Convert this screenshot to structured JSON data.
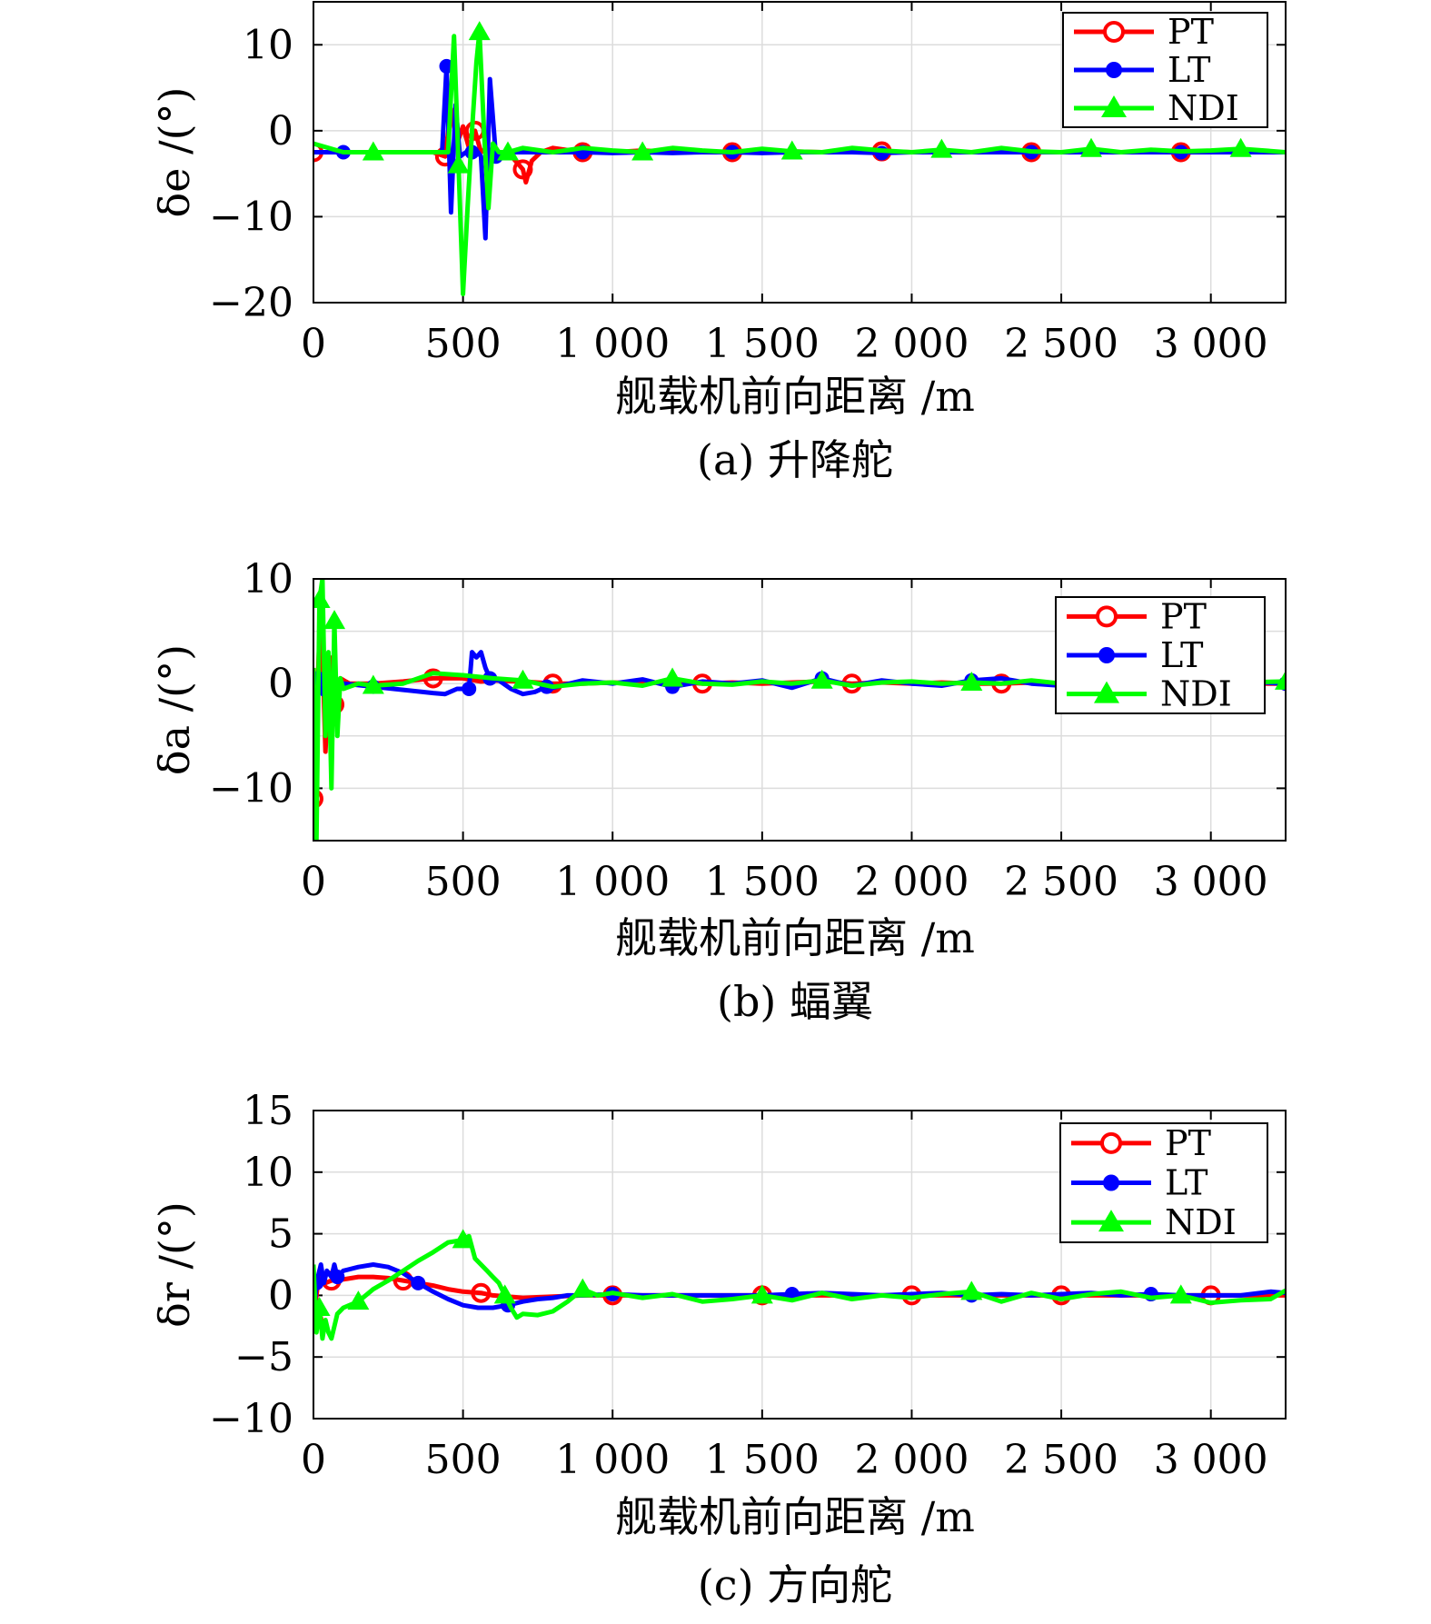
{
  "chart_data": [
    {
      "type": "line",
      "caption": "(a) 升降舵",
      "xlabel": "舰载机前向距离 /m",
      "ylabel": "δe /(°)",
      "xlim": [
        0,
        3250
      ],
      "ylim": [
        -20,
        15
      ],
      "xticks": [
        0,
        500,
        1000,
        1500,
        2000,
        2500,
        3000
      ],
      "xtick_labels": [
        "0",
        "500",
        "1 000",
        "1 500",
        "2 000",
        "2 500",
        "3 000"
      ],
      "yticks": [
        -20,
        -10,
        0,
        10
      ],
      "ytick_labels": [
        "−20",
        "−10",
        "0",
        "10"
      ],
      "grid": true,
      "legend_position": "top-right",
      "series": [
        {
          "name": "PT",
          "color": "#ff0000",
          "marker": "circle-open",
          "x": [
            0,
            100,
            200,
            300,
            400,
            440,
            460,
            480,
            500,
            520,
            540,
            560,
            580,
            600,
            650,
            700,
            710,
            730,
            760,
            800,
            900,
            1000,
            1100,
            1200,
            1300,
            1400,
            1500,
            1600,
            1700,
            1800,
            1900,
            2000,
            2100,
            2200,
            2300,
            2400,
            2500,
            2600,
            2700,
            2800,
            2900,
            3000,
            3100,
            3250
          ],
          "y": [
            -2.5,
            -2.5,
            -2.5,
            -2.5,
            -2.5,
            -3.0,
            2.5,
            -1.5,
            0.5,
            -2.0,
            0.0,
            -2.5,
            -2.0,
            -2.5,
            -2.5,
            -4.5,
            -6.0,
            -3.5,
            -2.5,
            -2.0,
            -2.5,
            -2.5,
            -2.3,
            -2.5,
            -2.4,
            -2.5,
            -2.5,
            -2.4,
            -2.5,
            -2.5,
            -2.4,
            -2.5,
            -2.5,
            -2.5,
            -2.4,
            -2.5,
            -2.5,
            -2.5,
            -2.5,
            -2.5,
            -2.5,
            -2.5,
            -2.5,
            -2.5
          ]
        },
        {
          "name": "LT",
          "color": "#0000ff",
          "marker": "dot",
          "x": [
            0,
            100,
            200,
            300,
            400,
            430,
            445,
            460,
            475,
            490,
            510,
            530,
            550,
            560,
            575,
            590,
            610,
            630,
            650,
            700,
            800,
            900,
            1000,
            1100,
            1200,
            1300,
            1400,
            1500,
            1600,
            1700,
            1800,
            1900,
            2000,
            2100,
            2200,
            2300,
            2400,
            2500,
            2600,
            2700,
            2800,
            2900,
            3000,
            3100,
            3250
          ],
          "y": [
            -2.5,
            -2.5,
            -2.5,
            -2.5,
            -2.5,
            -2.5,
            7.5,
            -9.5,
            3.0,
            -3.0,
            -2.5,
            -2.5,
            -2.5,
            -3.0,
            -12.5,
            6.0,
            -3.0,
            -2.5,
            -2.5,
            -2.5,
            -2.5,
            -2.5,
            -2.6,
            -2.5,
            -2.6,
            -2.5,
            -2.5,
            -2.6,
            -2.5,
            -2.5,
            -2.5,
            -2.6,
            -2.5,
            -2.5,
            -2.5,
            -2.5,
            -2.5,
            -2.5,
            -2.5,
            -2.5,
            -2.5,
            -2.5,
            -2.5,
            -2.5,
            -2.5
          ]
        },
        {
          "name": "NDI",
          "color": "#00ff00",
          "marker": "triangle",
          "x": [
            0,
            100,
            200,
            300,
            400,
            450,
            470,
            485,
            500,
            515,
            530,
            545,
            555,
            570,
            585,
            600,
            620,
            650,
            700,
            800,
            900,
            1000,
            1100,
            1200,
            1300,
            1400,
            1500,
            1600,
            1700,
            1800,
            1900,
            2000,
            2100,
            2200,
            2300,
            2400,
            2500,
            2600,
            2700,
            2800,
            2900,
            3000,
            3100,
            3250
          ],
          "y": [
            -1.5,
            -2.5,
            -2.5,
            -2.5,
            -2.5,
            -2.5,
            11.0,
            -4.0,
            -19.0,
            -9.0,
            0.0,
            8.0,
            11.5,
            0.0,
            -9.0,
            -1.5,
            -2.5,
            -2.5,
            -2.0,
            -2.5,
            -2.0,
            -2.3,
            -2.5,
            -2.0,
            -2.3,
            -2.5,
            -2.1,
            -2.4,
            -2.5,
            -2.0,
            -2.3,
            -2.5,
            -2.2,
            -2.5,
            -2.0,
            -2.4,
            -2.5,
            -2.1,
            -2.5,
            -2.2,
            -2.4,
            -2.3,
            -2.1,
            -2.5
          ]
        }
      ]
    },
    {
      "type": "line",
      "caption": "(b) 蝠翼",
      "xlabel": "舰载机前向距离 /m",
      "ylabel": "δa /(°)",
      "xlim": [
        0,
        3250
      ],
      "ylim": [
        -15,
        10
      ],
      "xticks": [
        0,
        500,
        1000,
        1500,
        2000,
        2500,
        3000
      ],
      "xtick_labels": [
        "0",
        "500",
        "1 000",
        "1 500",
        "2 000",
        "2 500",
        "3 000"
      ],
      "yticks": [
        -10,
        0,
        10
      ],
      "ytick_labels": [
        "−10",
        "0",
        "10"
      ],
      "grid": true,
      "legend_position": "top-right",
      "series": [
        {
          "name": "PT",
          "color": "#ff0000",
          "marker": "circle-open",
          "x": [
            0,
            10,
            25,
            40,
            55,
            70,
            90,
            120,
            200,
            300,
            400,
            500,
            560,
            600,
            700,
            800,
            900,
            1000,
            1100,
            1200,
            1300,
            1400,
            1500,
            1600,
            1700,
            1800,
            1900,
            2000,
            2100,
            2200,
            2300,
            2400,
            2500,
            2600,
            2700,
            2800,
            2900,
            3000,
            3100,
            3250
          ],
          "y": [
            -11.0,
            -3.0,
            8.0,
            -6.5,
            2.5,
            -2.0,
            0.5,
            0.0,
            0.0,
            0.2,
            0.5,
            0.5,
            0.2,
            0.3,
            0.2,
            0.0,
            0.0,
            0.1,
            0.0,
            0.2,
            0.0,
            0.1,
            0.0,
            0.1,
            0.2,
            0.0,
            0.1,
            0.0,
            0.1,
            0.0,
            0.0,
            0.1,
            0.0,
            0.1,
            0.0,
            0.0,
            0.1,
            0.0,
            0.0,
            0.0
          ]
        },
        {
          "name": "LT",
          "color": "#0000ff",
          "marker": "dot",
          "x": [
            0,
            15,
            30,
            50,
            70,
            100,
            200,
            300,
            400,
            440,
            480,
            520,
            530,
            545,
            560,
            575,
            590,
            620,
            660,
            700,
            740,
            780,
            800,
            900,
            1000,
            1100,
            1200,
            1300,
            1400,
            1500,
            1600,
            1700,
            1800,
            1900,
            2000,
            2100,
            2200,
            2300,
            2400,
            2500,
            2600,
            2700,
            2800,
            2900,
            3000,
            3100,
            3250
          ],
          "y": [
            0.0,
            0.5,
            -1.0,
            1.0,
            0.0,
            0.0,
            -0.3,
            -0.6,
            -0.9,
            -1.0,
            -0.5,
            -0.5,
            3.0,
            2.5,
            3.0,
            1.5,
            0.5,
            0.3,
            -0.5,
            -1.0,
            -0.8,
            -0.3,
            -0.4,
            0.3,
            0.0,
            0.4,
            -0.3,
            0.2,
            0.0,
            0.3,
            -0.4,
            0.5,
            -0.2,
            0.3,
            0.0,
            -0.2,
            0.3,
            0.5,
            0.0,
            -0.2,
            0.3,
            0.0,
            -0.1,
            0.2,
            0.0,
            0.2,
            0.0
          ]
        },
        {
          "name": "NDI",
          "color": "#00ff00",
          "marker": "triangle",
          "x": [
            0,
            10,
            20,
            30,
            40,
            50,
            60,
            70,
            80,
            90,
            100,
            150,
            200,
            300,
            400,
            500,
            600,
            700,
            800,
            900,
            1000,
            1100,
            1200,
            1300,
            1400,
            1500,
            1600,
            1700,
            1800,
            1900,
            2000,
            2100,
            2200,
            2300,
            2400,
            2500,
            2600,
            2700,
            2800,
            2900,
            3000,
            3100,
            3250
          ],
          "y": [
            1.5,
            -15.0,
            8.0,
            10.0,
            -5.0,
            3.0,
            -10.0,
            6.0,
            -5.0,
            0.5,
            -0.5,
            0.0,
            -0.2,
            0.0,
            1.0,
            0.8,
            0.5,
            0.3,
            -0.3,
            0.0,
            0.1,
            -0.2,
            0.5,
            0.0,
            -0.1,
            0.2,
            0.0,
            0.3,
            -0.2,
            0.1,
            0.2,
            0.0,
            0.1,
            0.0,
            0.3,
            0.0,
            -0.1,
            0.1,
            0.0,
            0.2,
            0.0,
            0.1,
            0.2
          ]
        }
      ]
    },
    {
      "type": "line",
      "caption": "(c) 方向舵",
      "xlabel": "舰载机前向距离 /m",
      "ylabel": "δr /(°)",
      "xlim": [
        0,
        3250
      ],
      "ylim": [
        -10,
        15
      ],
      "xticks": [
        0,
        500,
        1000,
        1500,
        2000,
        2500,
        3000
      ],
      "xtick_labels": [
        "0",
        "500",
        "1 000",
        "1 500",
        "2 000",
        "2 500",
        "3 000"
      ],
      "yticks": [
        -10,
        -5,
        0,
        5,
        10,
        15
      ],
      "ytick_labels": [
        "−10",
        "−5",
        "0",
        "5",
        "10",
        "15"
      ],
      "grid": true,
      "legend_position": "top-right",
      "series": [
        {
          "name": "PT",
          "color": "#ff0000",
          "marker": "circle-open",
          "x": [
            0,
            10,
            20,
            30,
            40,
            60,
            100,
            150,
            200,
            250,
            300,
            350,
            400,
            450,
            500,
            560,
            600,
            700,
            800,
            900,
            1000,
            1100,
            1200,
            1300,
            1400,
            1500,
            1600,
            1700,
            1800,
            1900,
            2000,
            2100,
            2200,
            2300,
            2400,
            2500,
            2600,
            2700,
            2800,
            2900,
            3000,
            3100,
            3250
          ],
          "y": [
            -2.0,
            0.0,
            2.0,
            1.5,
            1.0,
            1.2,
            1.3,
            1.5,
            1.5,
            1.4,
            1.2,
            1.0,
            0.8,
            0.5,
            0.3,
            0.2,
            0.0,
            -0.2,
            -0.1,
            0.0,
            0.0,
            0.0,
            0.0,
            0.0,
            0.0,
            0.0,
            0.0,
            0.0,
            0.0,
            0.0,
            0.0,
            0.0,
            0.0,
            0.0,
            0.0,
            0.0,
            0.0,
            0.0,
            0.0,
            0.0,
            0.0,
            0.0,
            0.0
          ]
        },
        {
          "name": "LT",
          "color": "#0000ff",
          "marker": "dot",
          "x": [
            0,
            10,
            25,
            35,
            45,
            60,
            70,
            80,
            100,
            150,
            200,
            250,
            300,
            350,
            400,
            450,
            500,
            550,
            600,
            650,
            700,
            750,
            800,
            850,
            900,
            1000,
            1100,
            1200,
            1300,
            1400,
            1500,
            1600,
            1700,
            1800,
            1900,
            2000,
            2100,
            2200,
            2300,
            2400,
            2500,
            2600,
            2700,
            2800,
            2900,
            3000,
            3100,
            3200,
            3250
          ],
          "y": [
            -2.0,
            1.0,
            2.5,
            1.0,
            2.0,
            1.5,
            2.5,
            1.5,
            2.0,
            2.3,
            2.5,
            2.3,
            1.8,
            1.0,
            0.3,
            -0.3,
            -0.8,
            -1.0,
            -1.0,
            -0.8,
            -0.5,
            -0.3,
            -0.2,
            0.0,
            0.0,
            0.1,
            0.0,
            0.0,
            0.0,
            0.0,
            0.0,
            0.1,
            0.2,
            0.1,
            0.0,
            0.1,
            0.2,
            0.0,
            0.1,
            0.0,
            0.1,
            0.2,
            0.0,
            0.1,
            0.0,
            0.0,
            0.0,
            0.3,
            0.2
          ]
        },
        {
          "name": "NDI",
          "color": "#00ff00",
          "marker": "triangle",
          "x": [
            0,
            10,
            20,
            30,
            40,
            50,
            60,
            80,
            100,
            150,
            200,
            250,
            300,
            350,
            400,
            450,
            500,
            520,
            540,
            560,
            580,
            600,
            620,
            640,
            660,
            680,
            700,
            750,
            800,
            850,
            900,
            950,
            1000,
            1100,
            1200,
            1300,
            1400,
            1500,
            1600,
            1700,
            1800,
            1900,
            2000,
            2100,
            2200,
            2300,
            2400,
            2500,
            2600,
            2700,
            2800,
            2900,
            3000,
            3100,
            3200,
            3250
          ],
          "y": [
            2.5,
            -3.0,
            -1.0,
            -3.5,
            -2.0,
            -3.0,
            -3.5,
            -1.5,
            -1.0,
            -0.5,
            0.5,
            1.2,
            2.0,
            2.8,
            3.5,
            4.3,
            4.5,
            4.8,
            3.0,
            2.5,
            2.0,
            1.5,
            1.0,
            0.0,
            -1.0,
            -1.8,
            -1.5,
            -1.6,
            -1.3,
            -0.5,
            0.5,
            0.0,
            0.2,
            -0.2,
            0.1,
            -0.5,
            -0.3,
            0.0,
            -0.4,
            0.2,
            -0.3,
            0.0,
            -0.2,
            0.1,
            0.3,
            -0.5,
            0.2,
            -0.3,
            0.1,
            0.3,
            -0.2,
            0.0,
            -0.6,
            -0.4,
            -0.3,
            0.4
          ]
        }
      ]
    }
  ]
}
